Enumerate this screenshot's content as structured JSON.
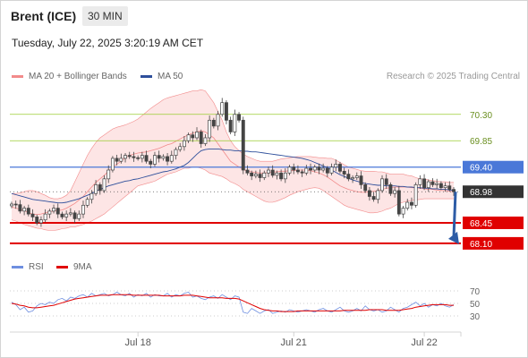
{
  "header": {
    "instrument": "Brent (ICE)",
    "interval": "30 MIN",
    "datetime": "Tuesday, July 22, 2025 3:20:19 AM CET",
    "copyright": "Research © 2025 Trading Central"
  },
  "legend": {
    "bollinger_label": "MA 20 + Bollinger Bands",
    "ma50_label": "MA 50",
    "rsi_label": "RSI",
    "ma9_label": "9MA"
  },
  "colors": {
    "bollinger": "#f28b8b",
    "bollinger_fill": "#fde0e0",
    "ma50": "#2e4f9b",
    "rsi": "#6e8fe0",
    "ma9": "#e00000",
    "level_green": "#9acd32",
    "level_blue": "#4a78d8",
    "level_red": "#e00000",
    "candle": "#444444",
    "arrow": "#2d5ca6"
  },
  "chart_data": [
    {
      "type": "candlestick",
      "title": "Brent (ICE) 30 MIN",
      "x_ticks": [
        "Jul 18",
        "Jul 21",
        "Jul 22"
      ],
      "ylim": [
        67.9,
        70.8
      ],
      "current_price": 68.98,
      "levels": [
        {
          "value": 70.3,
          "label": "70.30",
          "kind": "resistance"
        },
        {
          "value": 69.85,
          "label": "69.85",
          "kind": "resistance"
        },
        {
          "value": 69.4,
          "label": "69.40",
          "kind": "pivot"
        },
        {
          "value": 68.98,
          "label": "68.98",
          "kind": "last"
        },
        {
          "value": 68.45,
          "label": "68.45",
          "kind": "support"
        },
        {
          "value": 68.1,
          "label": "68.10",
          "kind": "support"
        }
      ],
      "forecast_arrow": {
        "from": 68.98,
        "to": 68.1
      },
      "close": [
        68.77,
        68.76,
        68.65,
        68.7,
        68.6,
        68.55,
        68.45,
        68.5,
        68.6,
        68.65,
        68.7,
        68.6,
        68.55,
        68.6,
        68.62,
        68.52,
        68.6,
        68.75,
        68.85,
        68.95,
        69.1,
        69.0,
        69.2,
        69.35,
        69.55,
        69.5,
        69.55,
        69.6,
        69.58,
        69.56,
        69.55,
        69.6,
        69.5,
        69.45,
        69.6,
        69.55,
        69.58,
        69.5,
        69.6,
        69.7,
        69.75,
        69.85,
        69.95,
        69.9,
        70.0,
        69.8,
        69.9,
        70.2,
        70.1,
        70.3,
        70.5,
        70.2,
        70.0,
        70.3,
        70.2,
        69.35,
        69.3,
        69.25,
        69.28,
        69.22,
        69.3,
        69.35,
        69.26,
        69.3,
        69.2,
        69.3,
        69.4,
        69.35,
        69.32,
        69.3,
        69.38,
        69.35,
        69.4,
        69.35,
        69.38,
        69.3,
        69.4,
        69.45,
        69.33,
        69.28,
        69.2,
        69.22,
        69.25,
        69.1,
        69.0,
        68.9,
        68.85,
        69.0,
        69.2,
        69.1,
        68.95,
        69.0,
        68.6,
        68.7,
        68.8,
        68.75,
        69.1,
        69.2,
        69.05,
        69.15,
        69.1,
        69.12,
        69.05,
        69.08,
        69.02,
        68.98
      ],
      "ma20": [
        68.72,
        68.7,
        68.68,
        68.66,
        68.62,
        68.6,
        68.59,
        68.6,
        68.62,
        68.64,
        68.65,
        68.66,
        68.67,
        68.7,
        68.74,
        68.78,
        68.84,
        68.9,
        68.98,
        69.06,
        69.14,
        69.2,
        69.26,
        69.33,
        69.4,
        69.45,
        69.5,
        69.56,
        69.6,
        69.62,
        69.64,
        69.65,
        69.66,
        69.68,
        69.7,
        69.72,
        69.75,
        69.78,
        69.8,
        69.84,
        69.88,
        69.92,
        69.95,
        69.98,
        70.0,
        70.02,
        70.0,
        69.95,
        69.9,
        69.8,
        69.7,
        69.6,
        69.5,
        69.45,
        69.4,
        69.36,
        69.33,
        69.32,
        69.31,
        69.3,
        69.3,
        69.31,
        69.32,
        69.32,
        69.33,
        69.33,
        69.34,
        69.34,
        69.35,
        69.35,
        69.35,
        69.34,
        69.32,
        69.3,
        69.27,
        69.23,
        69.18,
        69.13,
        69.08,
        69.05,
        69.02,
        69.0,
        68.98,
        68.97,
        68.97,
        68.98,
        68.99,
        69.0,
        69.02,
        69.04,
        69.05,
        69.06,
        69.06,
        69.06,
        69.06,
        69.05,
        69.05,
        69.04,
        69.03,
        69.02,
        69.02,
        69.01,
        69.0,
        69.0,
        68.99,
        68.98
      ],
      "bb_upper": [
        68.95,
        68.95,
        68.96,
        68.98,
        69.0,
        69.0,
        68.98,
        68.95,
        68.92,
        68.88,
        68.86,
        68.86,
        68.88,
        68.92,
        69.0,
        69.15,
        69.3,
        69.45,
        69.6,
        69.72,
        69.82,
        69.9,
        69.95,
        70.0,
        70.05,
        70.08,
        70.1,
        70.12,
        70.15,
        70.18,
        70.22,
        70.28,
        70.34,
        70.4,
        70.45,
        70.5,
        70.55,
        70.58,
        70.6,
        70.62,
        70.64,
        70.66,
        70.68,
        70.7,
        70.7,
        70.72,
        70.7,
        70.6,
        70.5,
        70.35,
        70.2,
        70.0,
        69.85,
        69.75,
        69.68,
        69.62,
        69.58,
        69.55,
        69.52,
        69.5,
        69.5,
        69.5,
        69.5,
        69.52,
        69.54,
        69.55,
        69.56,
        69.57,
        69.58,
        69.58,
        69.58,
        69.58,
        69.57,
        69.56,
        69.56,
        69.55,
        69.55,
        69.52,
        69.48,
        69.44,
        69.4,
        69.38,
        69.36,
        69.34,
        69.33,
        69.33,
        69.33,
        69.32,
        69.32,
        69.3,
        69.28,
        69.28,
        69.28,
        69.28,
        69.26,
        69.25,
        69.22,
        69.2,
        69.2,
        69.18,
        69.17,
        69.16,
        69.15,
        69.15,
        69.14,
        69.14
      ],
      "bb_lower": [
        68.5,
        68.48,
        68.45,
        68.42,
        68.4,
        68.38,
        68.36,
        68.35,
        68.33,
        68.32,
        68.32,
        68.33,
        68.35,
        68.36,
        68.38,
        68.38,
        68.4,
        68.42,
        68.45,
        68.48,
        68.52,
        68.56,
        68.6,
        68.66,
        68.72,
        68.78,
        68.84,
        68.9,
        68.96,
        69.02,
        69.08,
        69.1,
        69.12,
        69.14,
        69.16,
        69.2,
        69.24,
        69.28,
        69.3,
        69.32,
        69.35,
        69.38,
        69.38,
        69.4,
        69.4,
        69.38,
        69.35,
        69.3,
        69.28,
        69.26,
        69.24,
        69.2,
        69.15,
        69.12,
        69.08,
        69.02,
        68.98,
        68.94,
        68.9,
        68.86,
        68.82,
        68.8,
        68.8,
        68.82,
        68.85,
        68.88,
        68.92,
        68.95,
        68.98,
        69.0,
        69.02,
        69.04,
        69.05,
        69.04,
        69.0,
        68.95,
        68.9,
        68.85,
        68.8,
        68.75,
        68.72,
        68.7,
        68.68,
        68.66,
        68.64,
        68.62,
        68.62,
        68.63,
        68.65,
        68.68,
        68.7,
        68.74,
        68.78,
        68.8,
        68.82,
        68.83,
        68.84,
        68.85,
        68.86,
        68.86,
        68.86,
        68.86,
        68.86,
        68.86,
        68.86,
        68.86
      ],
      "ma50": [
        68.95,
        68.93,
        68.91,
        68.89,
        68.87,
        68.85,
        68.84,
        68.83,
        68.82,
        68.81,
        68.8,
        68.79,
        68.79,
        68.8,
        68.82,
        68.84,
        68.86,
        68.89,
        68.92,
        68.95,
        68.99,
        69.02,
        69.05,
        69.08,
        69.1,
        69.12,
        69.14,
        69.16,
        69.17,
        69.19,
        69.2,
        69.22,
        69.24,
        69.26,
        69.28,
        69.3,
        69.32,
        69.33,
        69.35,
        69.37,
        69.4,
        69.43,
        69.48,
        69.55,
        69.62,
        69.68,
        69.7,
        69.71,
        69.71,
        69.71,
        69.7,
        69.69,
        69.69,
        69.68,
        69.68,
        69.67,
        69.67,
        69.66,
        69.66,
        69.65,
        69.64,
        69.63,
        69.62,
        69.61,
        69.6,
        69.59,
        69.58,
        69.57,
        69.56,
        69.55,
        69.53,
        69.51,
        69.48,
        69.45,
        69.42,
        69.39,
        69.35,
        69.31,
        69.27,
        69.24,
        69.21,
        69.18,
        69.16,
        69.14,
        69.12,
        69.11,
        69.1,
        69.09,
        69.09,
        69.08,
        69.08,
        69.08,
        69.07,
        69.07,
        69.06,
        69.06,
        69.05,
        69.05,
        69.04,
        69.04,
        69.03,
        69.03,
        69.02,
        69.02,
        69.01,
        69.0
      ]
    },
    {
      "type": "line",
      "title": "RSI",
      "y_ticks": [
        70,
        50,
        30
      ],
      "ylim": [
        20,
        80
      ],
      "series": [
        {
          "name": "RSI",
          "values": [
            52,
            48,
            40,
            44,
            36,
            38,
            46,
            50,
            48,
            52,
            50,
            56,
            58,
            54,
            60,
            58,
            62,
            64,
            60,
            66,
            62,
            64,
            66,
            62,
            64,
            68,
            64,
            62,
            66,
            60,
            64,
            62,
            66,
            60,
            64,
            62,
            62,
            66,
            60,
            64,
            62,
            66,
            68,
            60,
            62,
            58,
            56,
            60,
            62,
            58,
            64,
            60,
            56,
            62,
            60,
            36,
            34,
            42,
            38,
            34,
            38,
            40,
            34,
            36,
            38,
            36,
            40,
            38,
            36,
            38,
            40,
            38,
            36,
            40,
            42,
            38,
            36,
            40,
            44,
            38,
            36,
            38,
            42,
            38,
            46,
            40,
            38,
            40,
            36,
            38,
            44,
            40,
            36,
            42,
            44,
            48,
            52,
            46,
            50,
            44,
            48,
            46,
            50,
            46,
            44,
            48
          ]
        },
        {
          "name": "9MA",
          "values": [
            50,
            49,
            47,
            46,
            44,
            43,
            43,
            44,
            45,
            46,
            47,
            49,
            51,
            53,
            55,
            57,
            58,
            59,
            60,
            61,
            62,
            63,
            63,
            63,
            64,
            64,
            64,
            64,
            64,
            63,
            63,
            63,
            63,
            63,
            63,
            63,
            62,
            62,
            62,
            62,
            62,
            63,
            63,
            63,
            62,
            61,
            60,
            59,
            59,
            59,
            59,
            58,
            58,
            58,
            57,
            54,
            51,
            48,
            45,
            42,
            40,
            39,
            38,
            38,
            37,
            37,
            37,
            37,
            38,
            38,
            38,
            38,
            38,
            38,
            38,
            38,
            38,
            38,
            38,
            39,
            39,
            39,
            39,
            39,
            39,
            40,
            40,
            40,
            40,
            39,
            39,
            39,
            39,
            40,
            41,
            42,
            44,
            45,
            46,
            47,
            48,
            48,
            48,
            48,
            47,
            47
          ]
        }
      ]
    }
  ]
}
